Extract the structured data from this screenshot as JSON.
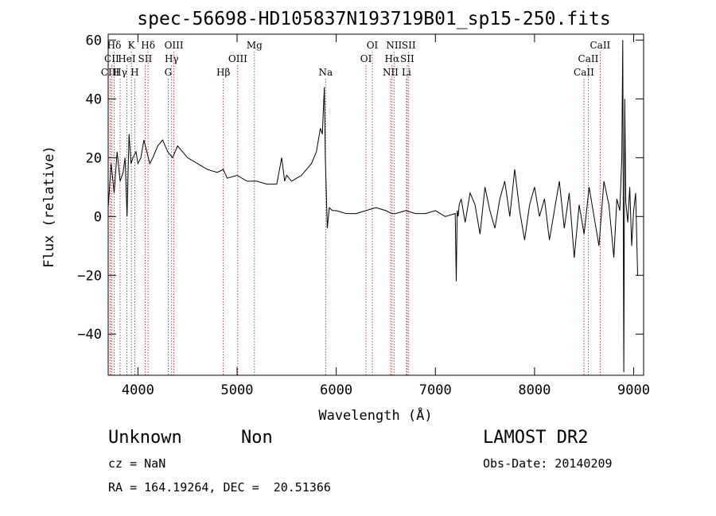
{
  "chart_data": {
    "type": "line",
    "title": "spec-56698-HD105837N193719B01_sp15-250.fits",
    "xlabel": "Wavelength (Å)",
    "ylabel": "Flux (relative)",
    "xlim": [
      3700,
      9100
    ],
    "ylim": [
      -54,
      62
    ],
    "x_ticks": [
      4000,
      5000,
      6000,
      7000,
      8000,
      9000
    ],
    "y_ticks": [
      -40,
      -20,
      0,
      20,
      40,
      60
    ],
    "grid": false,
    "series": [
      {
        "x": [
          3700,
          3730,
          3760,
          3790,
          3820,
          3850,
          3870,
          3890,
          3910,
          3930,
          3950,
          3980,
          4000,
          4030,
          4060,
          4090,
          4120,
          4150,
          4200,
          4250,
          4300,
          4350,
          4400,
          4450,
          4500,
          4600,
          4700,
          4800,
          4860,
          4900,
          5000,
          5100,
          5200,
          5300,
          5400,
          5450,
          5480,
          5500,
          5550,
          5600,
          5650,
          5700,
          5750,
          5800,
          5840,
          5860,
          5870,
          5880,
          5890,
          5900,
          5910,
          5930,
          5960,
          6000,
          6100,
          6200,
          6300,
          6400,
          6500,
          6560,
          6600,
          6700,
          6800,
          6900,
          7000,
          7100,
          7200,
          7210,
          7220,
          7230,
          7240,
          7260,
          7300,
          7350,
          7400,
          7450,
          7500,
          7550,
          7600,
          7650,
          7700,
          7750,
          7800,
          7850,
          7900,
          7950,
          8000,
          8050,
          8100,
          8150,
          8200,
          8250,
          8300,
          8350,
          8400,
          8450,
          8500,
          8550,
          8600,
          8650,
          8700,
          8750,
          8800,
          8830,
          8860,
          8880,
          8890,
          8900,
          8910,
          8920,
          8940,
          8960,
          8980,
          9000,
          9020,
          9040
        ],
        "values": [
          3,
          18,
          8,
          22,
          12,
          15,
          20,
          0,
          28,
          18,
          20,
          22,
          18,
          20,
          26,
          22,
          18,
          20,
          24,
          26,
          22,
          20,
          24,
          22,
          20,
          18,
          16,
          15,
          16,
          13,
          14,
          12,
          12,
          11,
          11,
          20,
          12,
          14,
          12,
          13,
          14,
          16,
          18,
          22,
          30,
          28,
          36,
          44,
          20,
          8,
          -4,
          3,
          2,
          2,
          1,
          1,
          2,
          3,
          2,
          1,
          1,
          2,
          1,
          1,
          2,
          0,
          1,
          -22,
          2,
          0,
          4,
          6,
          -2,
          8,
          4,
          -6,
          10,
          2,
          -4,
          6,
          12,
          0,
          16,
          2,
          -8,
          4,
          10,
          0,
          6,
          -8,
          2,
          12,
          -4,
          8,
          -14,
          4,
          -6,
          10,
          0,
          -10,
          12,
          4,
          -14,
          6,
          2,
          20,
          60,
          -53,
          40,
          5,
          -2,
          10,
          -10,
          2,
          8,
          -20
        ]
      }
    ],
    "emission_lines": [
      {
        "name": "Hδ",
        "x": 3760,
        "row": 0
      },
      {
        "name": "CII",
        "x": 3735,
        "row": 1
      },
      {
        "name": "CIII",
        "x": 3720,
        "row": 2
      },
      {
        "name": "K",
        "x": 3934,
        "row": 0
      },
      {
        "name": "HeI",
        "x": 3888,
        "row": 1
      },
      {
        "name": "Hγ",
        "x": 3820,
        "row": 2
      },
      {
        "name": "Hδ",
        "x": 4102,
        "row": 0
      },
      {
        "name": "SII",
        "x": 4072,
        "row": 1
      },
      {
        "name": "H",
        "x": 3968,
        "row": 2
      },
      {
        "name": "OIII",
        "x": 4363,
        "row": 0
      },
      {
        "name": "Hγ",
        "x": 4340,
        "row": 1
      },
      {
        "name": "G",
        "x": 4305,
        "row": 2
      },
      {
        "name": "Mg",
        "x": 5175,
        "row": 0
      },
      {
        "name": "OIII",
        "x": 5007,
        "row": 1
      },
      {
        "name": "Hβ",
        "x": 4861,
        "row": 2
      },
      {
        "name": "Na",
        "x": 5893,
        "row": 2
      },
      {
        "name": "OI",
        "x": 6364,
        "row": 0
      },
      {
        "name": "OI",
        "x": 6300,
        "row": 1
      },
      {
        "name": "NII",
        "x": 6583,
        "row": 0
      },
      {
        "name": "Hα",
        "x": 6563,
        "row": 1
      },
      {
        "name": "NII",
        "x": 6548,
        "row": 2
      },
      {
        "name": "SII",
        "x": 6731,
        "row": 0
      },
      {
        "name": "SII",
        "x": 6716,
        "row": 1
      },
      {
        "name": "Li",
        "x": 6708,
        "row": 2
      },
      {
        "name": "CaII",
        "x": 8662,
        "row": 0
      },
      {
        "name": "CaII",
        "x": 8542,
        "row": 1
      },
      {
        "name": "CaII",
        "x": 8498,
        "row": 2
      }
    ]
  },
  "info": {
    "class": "Unknown",
    "subclass": "Non",
    "survey": "LAMOST DR2",
    "cz": "cz = NaN",
    "obs_date": "Obs-Date: 20140209",
    "coords": "RA = 164.19264, DEC =  20.51366"
  }
}
